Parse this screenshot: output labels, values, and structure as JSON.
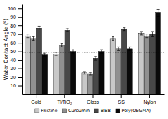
{
  "chart_data": {
    "type": "bar",
    "ylabel": "Water Contact Angle (°)",
    "categories": [
      "Gold",
      "Ti/TiO₂",
      "Glass",
      "SS",
      "Nylon"
    ],
    "series": [
      {
        "name": "Pristine",
        "color": "#c8c8c8",
        "values": [
          68,
          47,
          25,
          65,
          71
        ],
        "errors": [
          2,
          2,
          1.5,
          2,
          2
        ]
      },
      {
        "name": "Curcumin",
        "color": "#909090",
        "values": [
          65,
          57,
          24,
          53,
          68
        ],
        "errors": [
          2,
          2,
          1.5,
          2,
          2
        ]
      },
      {
        "name": "BIBB",
        "color": "#484848",
        "values": [
          77,
          75,
          42,
          76,
          70
        ],
        "errors": [
          2,
          2,
          2,
          2,
          3
        ]
      },
      {
        "name": "Poly(OEGMA)",
        "color": "#0a0a0a",
        "values": [
          46,
          50,
          50,
          53,
          95
        ],
        "errors": [
          2,
          2,
          2,
          2,
          4
        ]
      }
    ],
    "hline": 49,
    "ylim": [
      0,
      105
    ],
    "yticks": [
      10,
      20,
      30,
      40,
      50,
      60,
      70,
      80,
      90,
      100
    ],
    "grid": false,
    "legend": "bottom"
  }
}
